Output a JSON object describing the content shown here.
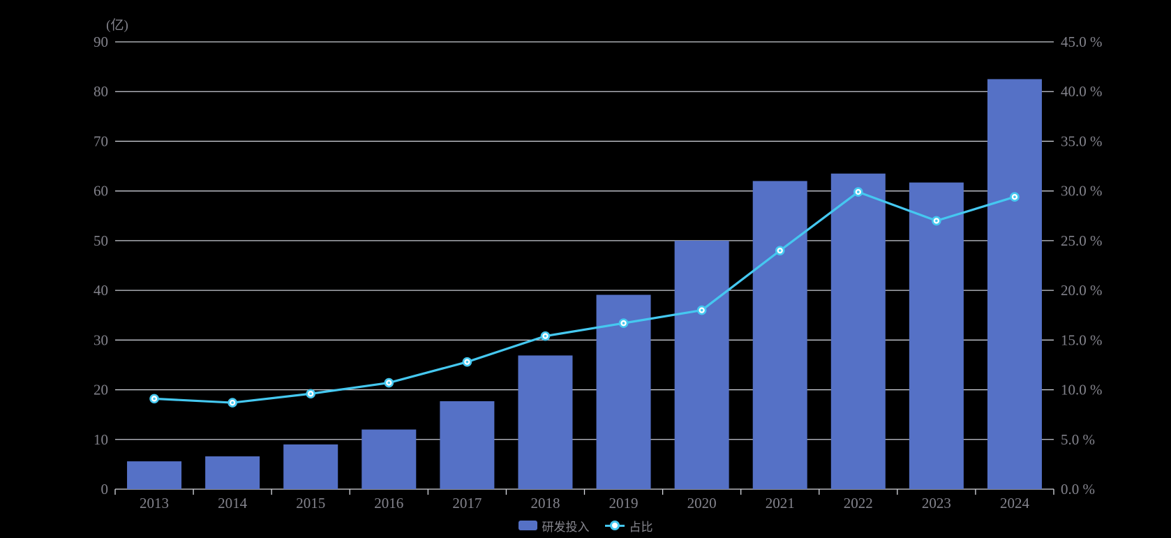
{
  "chart_data": {
    "type": "bar",
    "subtype": "bar-line-combo",
    "title": "",
    "categories": [
      "2013",
      "2014",
      "2015",
      "2016",
      "2017",
      "2018",
      "2019",
      "2020",
      "2021",
      "2022",
      "2023",
      "2024"
    ],
    "series": [
      {
        "name": "研发投入",
        "type": "bar",
        "axis": "left",
        "unit": "亿",
        "color": "#5571c6",
        "values": [
          5.6,
          6.6,
          9.0,
          12.0,
          17.7,
          26.9,
          39.1,
          50.0,
          62.0,
          63.5,
          61.7,
          82.5
        ]
      },
      {
        "name": "占比",
        "type": "line",
        "axis": "right",
        "unit": "%",
        "color": "#45c8f0",
        "values": [
          9.1,
          8.7,
          9.6,
          10.7,
          12.8,
          15.4,
          16.7,
          18.0,
          24.0,
          29.9,
          27.0,
          29.4
        ]
      }
    ],
    "left_axis": {
      "title": "(亿)",
      "min": 0,
      "max": 90,
      "tick_step": 10,
      "tick_labels": [
        "0",
        "10",
        "20",
        "30",
        "40",
        "50",
        "60",
        "70",
        "80",
        "90"
      ]
    },
    "right_axis": {
      "title": "",
      "min": 0,
      "max": 45,
      "tick_step": 5,
      "tick_labels": [
        "0.0 %",
        "5.0 %",
        "10.0 %",
        "15.0 %",
        "20.0 %",
        "25.0 %",
        "30.0 %",
        "35.0 %",
        "40.0 %",
        "45.0 %"
      ]
    },
    "grid": true,
    "legend_position": "bottom",
    "legend": [
      "研发投入",
      "占比"
    ],
    "colors": {
      "background": "#000000",
      "bar": "#5571c6",
      "line": "#45c8f0",
      "grid_line": "#c9ccd4",
      "axis_line": "#d8dae0",
      "label_text": "#83838c",
      "marker_fill": "#ffffff"
    }
  },
  "legend": {
    "items": [
      {
        "label": "研发投入",
        "swatch": "bar"
      },
      {
        "label": "占比",
        "swatch": "line-marker"
      }
    ]
  }
}
